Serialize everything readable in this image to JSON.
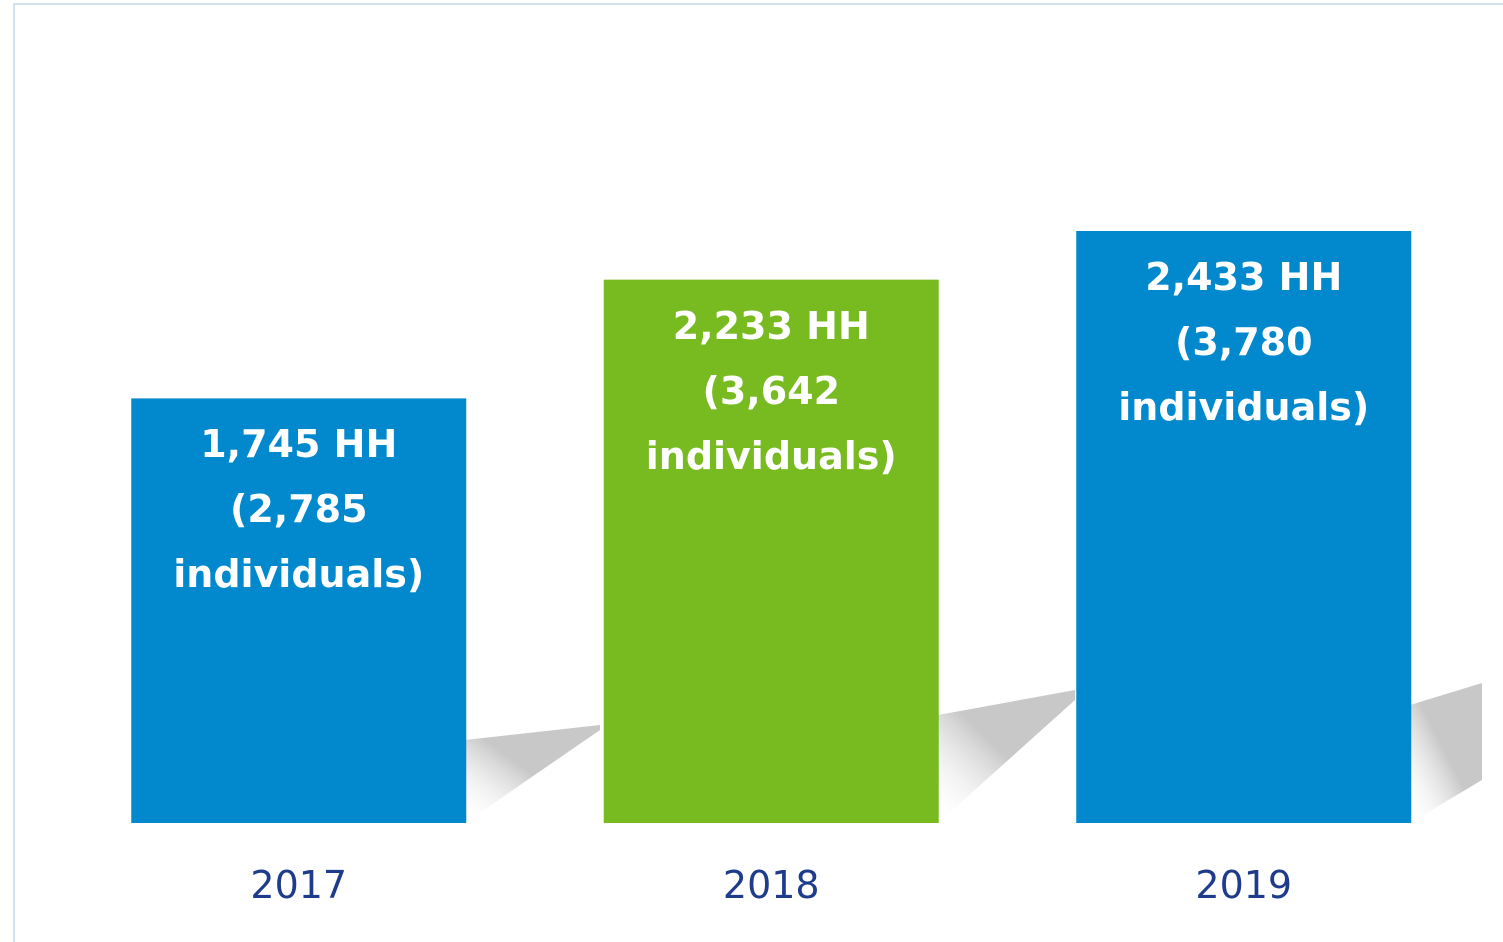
{
  "chart_data": {
    "type": "bar",
    "categories": [
      "2017",
      "2018",
      "2019"
    ],
    "values": [
      1745,
      2233,
      2433
    ],
    "value_labels": [
      "1,745 HH\n(2,785\nindividuals)",
      "2,233 HH\n(3,642\nindividuals)",
      "2,433 HH\n(3,780\nindividuals)"
    ],
    "colors": [
      "#0288cc",
      "#78bb20",
      "#0288cc"
    ]
  }
}
